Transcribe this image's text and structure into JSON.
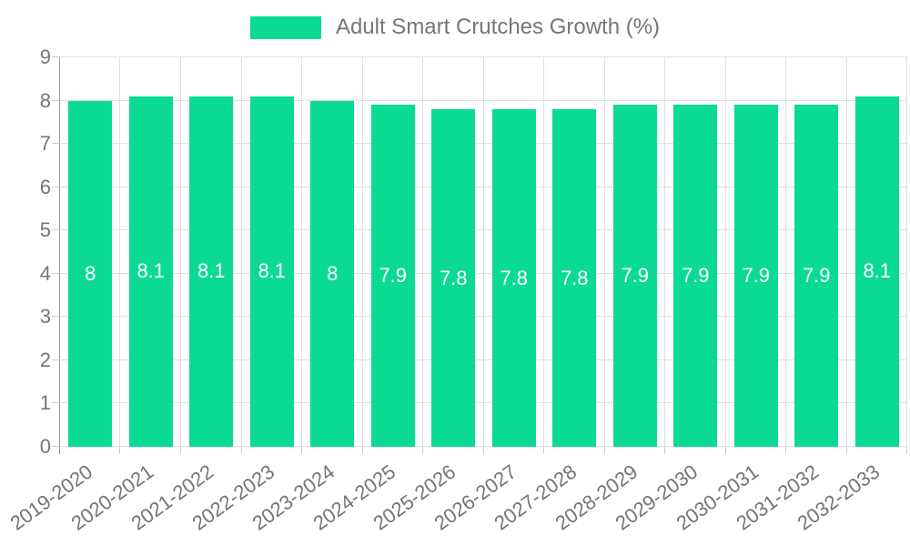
{
  "legend": {
    "label": "Adult Smart Crutches Growth (%)"
  },
  "chart_data": {
    "type": "bar",
    "title": "Adult Smart Crutches Growth (%)",
    "categories": [
      "2019-2020",
      "2020-2021",
      "2021-2022",
      "2022-2023",
      "2023-2024",
      "2024-2025",
      "2025-2026",
      "2026-2027",
      "2027-2028",
      "2028-2029",
      "2029-2030",
      "2030-2031",
      "2031-2032",
      "2032-2033"
    ],
    "values": [
      8,
      8.1,
      8.1,
      8.1,
      8,
      7.9,
      7.8,
      7.8,
      7.8,
      7.9,
      7.9,
      7.9,
      7.9,
      8.1
    ],
    "bar_labels": [
      "8",
      "8.1",
      "8.1",
      "8.1",
      "8",
      "7.9",
      "7.8",
      "7.8",
      "7.8",
      "7.9",
      "7.9",
      "7.9",
      "7.9",
      "8.1"
    ],
    "xlabel": "",
    "ylabel": "",
    "ylim": [
      0,
      9
    ],
    "yticks": [
      0,
      1,
      2,
      3,
      4,
      5,
      6,
      7,
      8,
      9
    ],
    "grid": true,
    "legend_position": "top-center",
    "colors": {
      "bar": "#0BDA96",
      "bar_value_text": "#ffffff",
      "axis_text": "#757575",
      "gridline": "#e0e0e0",
      "axis_line": "#999999",
      "tick_mark": "#cccccc",
      "background": "#ffffff"
    }
  }
}
